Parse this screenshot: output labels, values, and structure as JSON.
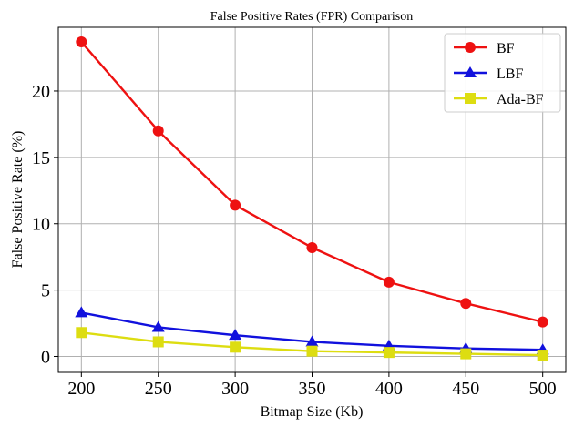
{
  "chart_data": {
    "type": "line",
    "title": "False Positive Rates (FPR) Comparison",
    "xlabel": "Bitmap Size (Kb)",
    "ylabel": "False Positive Rate (%)",
    "x": [
      200,
      250,
      300,
      350,
      400,
      450,
      500
    ],
    "xticks": [
      200,
      250,
      300,
      350,
      400,
      450,
      500
    ],
    "yticks": [
      0,
      5,
      10,
      15,
      20
    ],
    "xlim": [
      185,
      515
    ],
    "ylim": [
      -1.2,
      24.8
    ],
    "grid": true,
    "legend_position": "top-right",
    "series": [
      {
        "name": "BF",
        "color": "#ee1111",
        "marker": "circle",
        "values": [
          23.7,
          17.0,
          11.4,
          8.2,
          5.6,
          4.0,
          2.6
        ]
      },
      {
        "name": "LBF",
        "color": "#1111dd",
        "marker": "triangle",
        "values": [
          3.3,
          2.2,
          1.6,
          1.1,
          0.8,
          0.6,
          0.5
        ]
      },
      {
        "name": "Ada-BF",
        "color": "#dddd11",
        "marker": "square",
        "values": [
          1.8,
          1.1,
          0.7,
          0.4,
          0.3,
          0.2,
          0.1
        ]
      }
    ]
  }
}
